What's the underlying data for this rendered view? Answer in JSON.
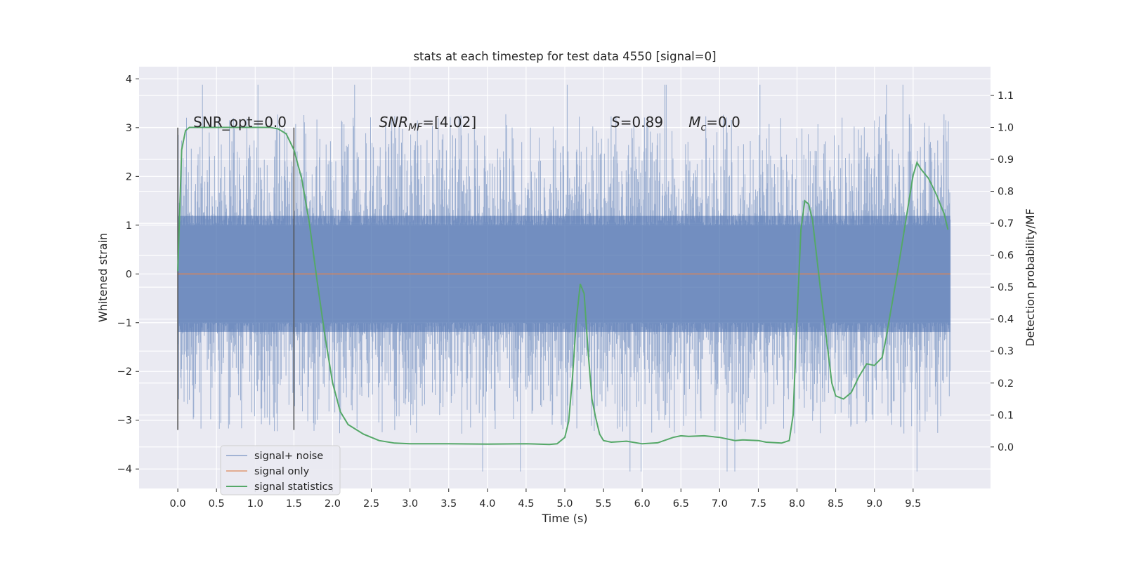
{
  "chart_data": {
    "type": "line",
    "title": "stats at each timestep for test data 4550 [signal=0]",
    "xlabel": "Time (s)",
    "ylabel": "Whitened strain",
    "y2label": "Detection probability/MF",
    "xlim": [
      -0.5,
      10.5
    ],
    "ylim": [
      -4.4,
      4.25
    ],
    "y2lim": [
      -0.13,
      1.19
    ],
    "x_ticks": [
      0.0,
      0.5,
      1.0,
      1.5,
      2.0,
      2.5,
      3.0,
      3.5,
      4.0,
      4.5,
      5.0,
      5.5,
      6.0,
      6.5,
      7.0,
      7.5,
      8.0,
      8.5,
      9.0,
      9.5
    ],
    "x_tick_labels": [
      "0.0",
      "0.5",
      "1.0",
      "1.5",
      "2.0",
      "2.5",
      "3.0",
      "3.5",
      "4.0",
      "4.5",
      "5.0",
      "5.5",
      "6.0",
      "6.5",
      "7.0",
      "7.5",
      "8.0",
      "8.5",
      "9.0",
      "9.5"
    ],
    "y_ticks": [
      -4,
      -3,
      -2,
      -1,
      0,
      1,
      2,
      3,
      4
    ],
    "y_tick_labels": [
      "−4",
      "−3",
      "−2",
      "−1",
      "0",
      "1",
      "2",
      "3",
      "4"
    ],
    "y2_ticks": [
      0.0,
      0.1,
      0.2,
      0.3,
      0.4,
      0.5,
      0.6,
      0.7,
      0.8,
      0.9,
      1.0,
      1.1
    ],
    "y2_tick_labels": [
      "0.0",
      "0.1",
      "0.2",
      "0.3",
      "0.4",
      "0.5",
      "0.6",
      "0.7",
      "0.8",
      "0.9",
      "1.0",
      "1.1"
    ],
    "grid": true,
    "legend_position": "lower-left",
    "colors": {
      "background": "#eaeaf2",
      "grid": "#ffffff",
      "noise": "#4c72b0",
      "signal_only": "#dd8452",
      "statistics": "#55a868",
      "markers": "#505050"
    },
    "series": [
      {
        "name": "signal+ noise",
        "axis": "left",
        "style": "dense-noise",
        "x_range": [
          0.0,
          9.98
        ],
        "typical_range": [
          -1.4,
          1.4
        ],
        "min": -4.05,
        "max": 3.88
      },
      {
        "name": "signal only",
        "axis": "left",
        "x": [
          0.0,
          9.98
        ],
        "y": [
          0.0,
          0.0
        ]
      },
      {
        "name": "signal statistics",
        "axis": "right",
        "x": [
          0.0,
          0.05,
          0.1,
          0.15,
          0.25,
          0.4,
          0.6,
          0.8,
          1.0,
          1.2,
          1.3,
          1.4,
          1.5,
          1.6,
          1.7,
          1.8,
          1.9,
          2.0,
          2.1,
          2.2,
          2.4,
          2.6,
          2.8,
          3.0,
          3.5,
          4.0,
          4.5,
          4.8,
          4.9,
          5.0,
          5.05,
          5.1,
          5.15,
          5.2,
          5.25,
          5.3,
          5.35,
          5.4,
          5.45,
          5.5,
          5.6,
          5.8,
          6.0,
          6.2,
          6.4,
          6.5,
          6.6,
          6.8,
          7.0,
          7.2,
          7.3,
          7.5,
          7.6,
          7.8,
          7.9,
          7.95,
          8.0,
          8.05,
          8.1,
          8.15,
          8.2,
          8.3,
          8.4,
          8.45,
          8.5,
          8.6,
          8.7,
          8.8,
          8.9,
          9.0,
          9.1,
          9.15,
          9.2,
          9.3,
          9.4,
          9.5,
          9.55,
          9.6,
          9.7,
          9.8,
          9.9,
          9.95
        ],
        "y": [
          0.55,
          0.93,
          0.99,
          1.0,
          1.0,
          1.0,
          1.0,
          1.0,
          1.0,
          1.0,
          0.995,
          0.98,
          0.93,
          0.84,
          0.7,
          0.52,
          0.35,
          0.2,
          0.11,
          0.07,
          0.04,
          0.02,
          0.012,
          0.01,
          0.01,
          0.009,
          0.01,
          0.008,
          0.01,
          0.03,
          0.08,
          0.22,
          0.4,
          0.51,
          0.48,
          0.3,
          0.15,
          0.09,
          0.04,
          0.02,
          0.015,
          0.018,
          0.01,
          0.013,
          0.03,
          0.035,
          0.033,
          0.035,
          0.03,
          0.02,
          0.022,
          0.02,
          0.015,
          0.012,
          0.02,
          0.1,
          0.4,
          0.68,
          0.77,
          0.76,
          0.71,
          0.5,
          0.3,
          0.2,
          0.16,
          0.15,
          0.17,
          0.22,
          0.26,
          0.255,
          0.28,
          0.34,
          0.41,
          0.55,
          0.7,
          0.85,
          0.89,
          0.87,
          0.84,
          0.79,
          0.73,
          0.68
        ]
      }
    ],
    "vertical_markers": [
      0.0,
      1.5
    ],
    "annotations": [
      {
        "x": 0.2,
        "text": "SNR_opt=0.0",
        "math": false
      },
      {
        "x": 2.6,
        "text": "SNR",
        "sub": "MF",
        "tail": "=[4.02]",
        "math": true
      },
      {
        "x": 5.6,
        "text": "S",
        "sub": "",
        "tail": "=0.89",
        "math": true
      },
      {
        "x": 6.6,
        "text": "M",
        "sub": "c",
        "tail": "=0.0",
        "math": true
      }
    ]
  }
}
